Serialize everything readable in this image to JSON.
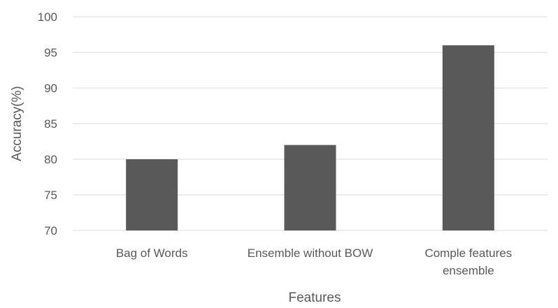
{
  "chart_data": {
    "type": "bar",
    "title": "",
    "xlabel": "Features",
    "ylabel": "Accuracy(%)",
    "categories": [
      [
        "Bag of Words"
      ],
      [
        "Ensemble without BOW"
      ],
      [
        "Comple features",
        "ensemble"
      ]
    ],
    "values": [
      80,
      82,
      96
    ],
    "ylim": [
      70,
      100
    ],
    "yticks": [
      "70",
      "75",
      "80",
      "85",
      "90",
      "95",
      "100"
    ],
    "grid": true,
    "legend": "none",
    "colors": {
      "bar": "#595959",
      "grid": "#d9d9d9",
      "text": "#595959"
    }
  }
}
